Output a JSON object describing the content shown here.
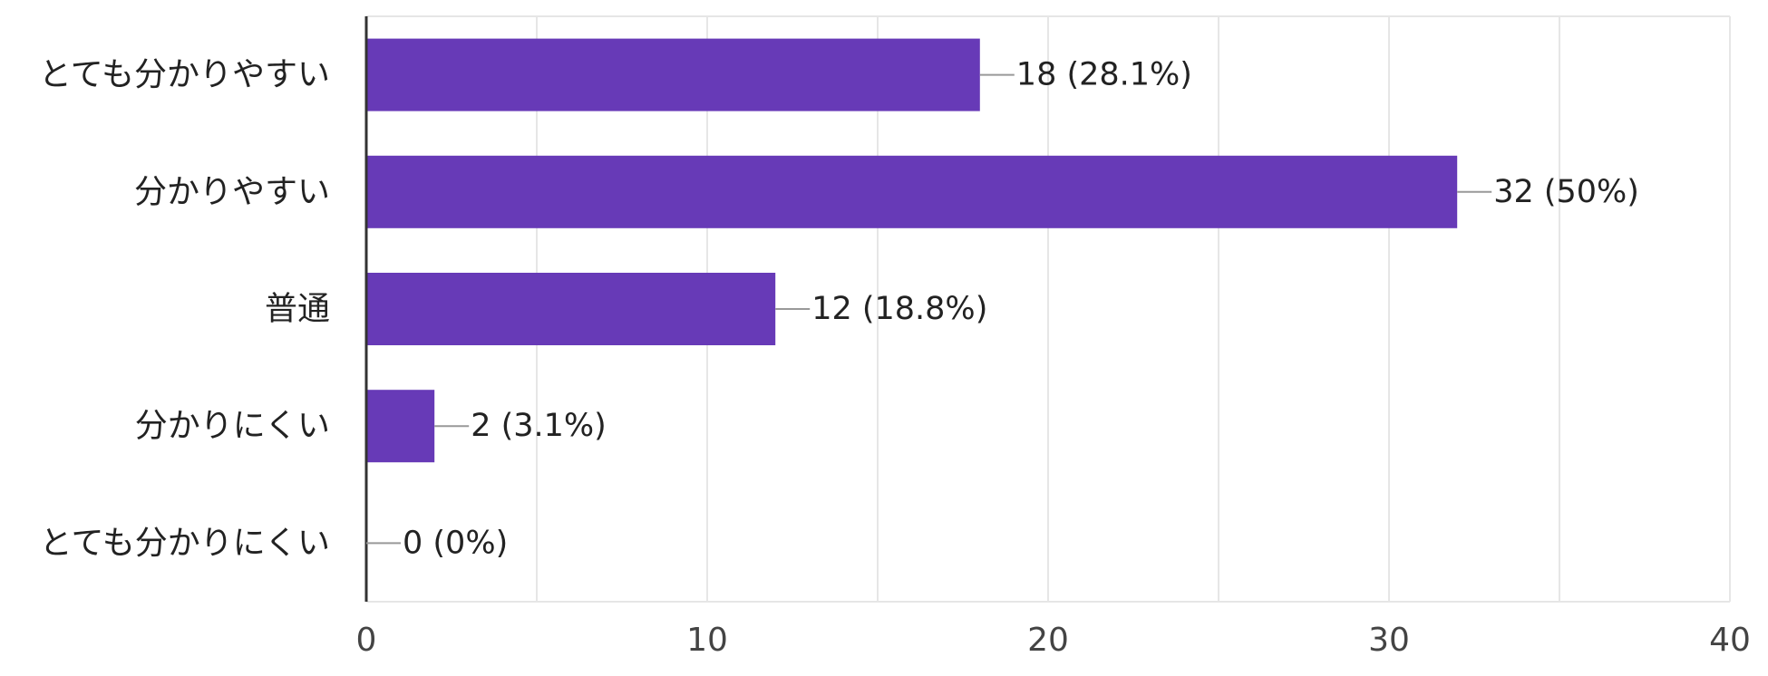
{
  "chart_data": {
    "type": "bar",
    "orientation": "horizontal",
    "categories": [
      "とても分かりやすい",
      "分かりやすい",
      "普通",
      "分かりにくい",
      "とても分かりにくい"
    ],
    "values": [
      18,
      32,
      12,
      2,
      0
    ],
    "data_labels": [
      "18 (28.1%)",
      "32 (50%)",
      "12 (18.8%)",
      "2 (3.1%)",
      "0 (0%)"
    ],
    "xlim": [
      0,
      40
    ],
    "x_ticks": [
      0,
      10,
      20,
      30,
      40
    ],
    "x_tick_labels": [
      "0",
      "10",
      "20",
      "30",
      "40"
    ],
    "minor_grid_step": 5,
    "grid": true,
    "legend": "none",
    "title": "",
    "xlabel": "",
    "ylabel": ""
  },
  "colors": {
    "bar": "#673ab7",
    "grid": "#e6e6e6",
    "axis": "#333333",
    "leader": "#999999"
  }
}
